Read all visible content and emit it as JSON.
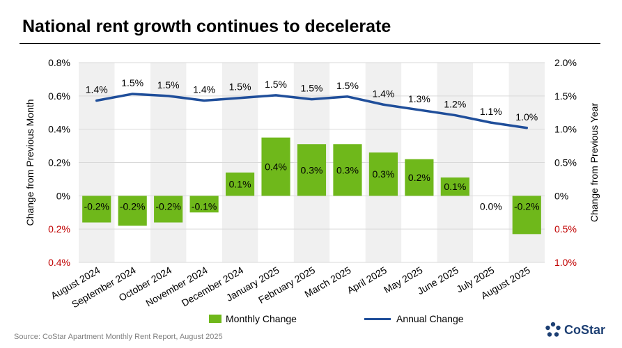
{
  "header": {
    "title": "National rent growth continues to decelerate"
  },
  "legend": {
    "bar_label": "Monthly Change",
    "line_label": "Annual Change"
  },
  "footer": {
    "source": "Source: CoStar Apartment Monthly Rent Report, August 2025",
    "logo_text": "CoStar"
  },
  "colors": {
    "bar": "#6fb81b",
    "line": "#1f4e9a",
    "band": "#f0f0f0",
    "negative_tick": "#c00000"
  },
  "chart_data": {
    "type": "bar",
    "categories": [
      "August 2024",
      "September 2024",
      "October 2024",
      "November 2024",
      "December 2024",
      "January 2025",
      "February 2025",
      "March 2025",
      "April 2025",
      "May 2025",
      "June 2025",
      "July 2025",
      "August 2025"
    ],
    "series": [
      {
        "name": "Monthly Change",
        "type": "bar",
        "axis": "left",
        "values": [
          -0.16,
          -0.18,
          -0.16,
          -0.1,
          0.14,
          0.35,
          0.31,
          0.31,
          0.26,
          0.22,
          0.11,
          0.0,
          -0.23
        ],
        "labels": [
          "-0.2%",
          "-0.2%",
          "-0.2%",
          "-0.1%",
          "0.1%",
          "0.4%",
          "0.3%",
          "0.3%",
          "0.3%",
          "0.2%",
          "0.1%",
          "0.0%",
          "-0.2%"
        ]
      },
      {
        "name": "Annual Change",
        "type": "line",
        "axis": "right",
        "values": [
          1.43,
          1.53,
          1.5,
          1.43,
          1.47,
          1.51,
          1.45,
          1.49,
          1.37,
          1.29,
          1.21,
          1.1,
          1.02
        ],
        "labels": [
          "1.4%",
          "1.5%",
          "1.5%",
          "1.4%",
          "1.5%",
          "1.5%",
          "1.5%",
          "1.5%",
          "1.4%",
          "1.3%",
          "1.2%",
          "1.1%",
          "1.0%"
        ]
      }
    ],
    "ylabel": "Change from Previous Month",
    "y2label": "Change from Previous Year",
    "ylim": [
      -0.4,
      0.8
    ],
    "y2lim": [
      -1.0,
      2.0
    ],
    "yticks": [
      {
        "v": 0.8,
        "label": "0.8%",
        "negative": false
      },
      {
        "v": 0.6,
        "label": "0.6%",
        "negative": false
      },
      {
        "v": 0.4,
        "label": "0.4%",
        "negative": false
      },
      {
        "v": 0.2,
        "label": "0.2%",
        "negative": false
      },
      {
        "v": 0.0,
        "label": "0%",
        "negative": false
      },
      {
        "v": -0.2,
        "label": "0.2%",
        "negative": true
      },
      {
        "v": -0.4,
        "label": "0.4%",
        "negative": true
      }
    ],
    "y2ticks": [
      {
        "v": 2.0,
        "label": "2.0%",
        "negative": false
      },
      {
        "v": 1.5,
        "label": "1.5%",
        "negative": false
      },
      {
        "v": 1.0,
        "label": "1.0%",
        "negative": false
      },
      {
        "v": 0.5,
        "label": "0.5%",
        "negative": false
      },
      {
        "v": 0.0,
        "label": "0%",
        "negative": false
      },
      {
        "v": -0.5,
        "label": "0.5%",
        "negative": true
      },
      {
        "v": -1.0,
        "label": "1.0%",
        "negative": true
      }
    ],
    "grid": true,
    "legend_position": "bottom"
  }
}
